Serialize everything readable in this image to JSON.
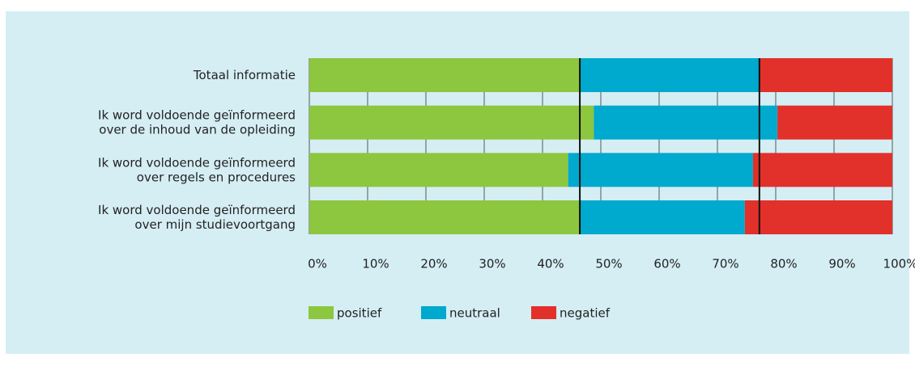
{
  "chart_data": {
    "type": "stacked-bar-horizontal",
    "categories": [
      [
        "Totaal informatie"
      ],
      [
        "Ik word voldoende geïnformeerd",
        "over de inhoud van de opleiding"
      ],
      [
        "Ik word voldoende geïnformeerd",
        "over regels en procedures"
      ],
      [
        "Ik word voldoende geïnformeerd",
        "over mijn studievoortgang"
      ]
    ],
    "series": [
      {
        "name": "positief",
        "color": "#8dc63f",
        "values": [
          46.4,
          48.8,
          44.4,
          46.5
        ]
      },
      {
        "name": "neutraal",
        "color": "#00a9ce",
        "values": [
          30.8,
          31.5,
          31.7,
          28.2
        ]
      },
      {
        "name": "negatief",
        "color": "#e2302a",
        "values": [
          22.8,
          19.7,
          23.9,
          25.3
        ]
      }
    ],
    "xlim": [
      0,
      100
    ],
    "xticks": [
      {
        "value": 0,
        "label": "0%"
      },
      {
        "value": 10,
        "label": "10%"
      },
      {
        "value": 20,
        "label": "20%"
      },
      {
        "value": 30,
        "label": "30%"
      },
      {
        "value": 40,
        "label": "40%"
      },
      {
        "value": 50,
        "label": "50%"
      },
      {
        "value": 60,
        "label": "60%"
      },
      {
        "value": 70,
        "label": "70%"
      },
      {
        "value": 80,
        "label": "80%"
      },
      {
        "value": 90,
        "label": "90%"
      },
      {
        "value": 100,
        "label": "100%"
      }
    ],
    "grid": true,
    "legend": "bottom"
  }
}
